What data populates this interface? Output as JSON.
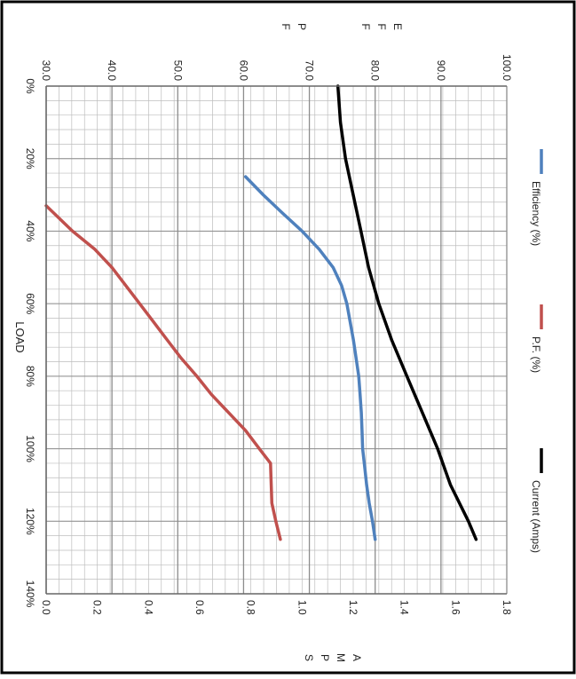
{
  "chart_data": {
    "type": "line",
    "orientation": "rotated-90-clockwise",
    "xlabel": "LOAD",
    "x_ticks": [
      "0%",
      "20%",
      "40%",
      "60%",
      "80%",
      "100%",
      "120%",
      "140%"
    ],
    "xlim": [
      0,
      140
    ],
    "y_left": {
      "label_letters": [
        "E",
        "F",
        "F",
        "",
        "P",
        "F"
      ],
      "ticks": [
        "30.0",
        "40.0",
        "50.0",
        "60.0",
        "70.0",
        "80.0",
        "90.0",
        "100.0"
      ],
      "lim": [
        30,
        100
      ]
    },
    "y_right": {
      "label_letters": [
        "A",
        "M",
        "P",
        "S"
      ],
      "ticks": [
        "0.0",
        "0.2",
        "0.4",
        "0.6",
        "0.8",
        "1.0",
        "1.2",
        "1.4",
        "1.6",
        "1.8"
      ],
      "lim": [
        0,
        1.8
      ]
    },
    "grid": true,
    "legend_position": "top",
    "series": [
      {
        "name": "Efficiency (%)",
        "axis": "left",
        "color": "#4F81BD",
        "x": [
          25,
          30,
          35,
          40,
          45,
          50,
          55,
          60,
          65,
          70,
          75,
          80,
          85,
          90,
          95,
          100,
          105,
          110,
          115,
          120,
          125
        ],
        "y": [
          60.3,
          63.0,
          65.9,
          68.9,
          71.5,
          73.6,
          74.9,
          75.7,
          76.2,
          76.7,
          77.1,
          77.5,
          77.7,
          77.9,
          78.0,
          78.1,
          78.4,
          78.7,
          79.1,
          79.6,
          80.0
        ]
      },
      {
        "name": "P.F. (%)",
        "axis": "left",
        "color": "#C0504D",
        "x": [
          33,
          40,
          45,
          50,
          55,
          60,
          65,
          70,
          75,
          80,
          85,
          90,
          95,
          100,
          104,
          110,
          115,
          120,
          125
        ],
        "y": [
          30.0,
          34.0,
          37.4,
          40.0,
          42.1,
          44.2,
          46.3,
          48.4,
          50.5,
          52.9,
          55.1,
          57.7,
          60.3,
          62.4,
          64.1,
          64.2,
          64.3,
          64.9,
          65.6
        ]
      },
      {
        "name": "Current (Amps)",
        "axis": "right",
        "color": "#000000",
        "x": [
          0,
          10,
          20,
          30,
          40,
          50,
          60,
          70,
          80,
          90,
          100,
          110,
          120,
          125
        ],
        "y": [
          1.14,
          1.15,
          1.17,
          1.2,
          1.23,
          1.26,
          1.3,
          1.35,
          1.41,
          1.47,
          1.53,
          1.58,
          1.65,
          1.68
        ]
      }
    ]
  }
}
